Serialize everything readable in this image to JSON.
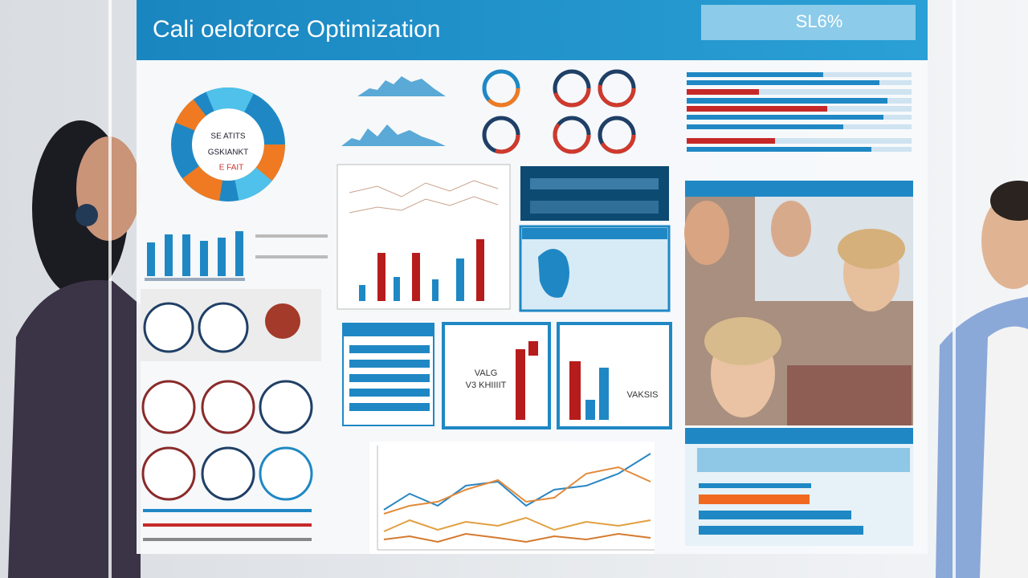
{
  "header": {
    "title": "Cali oeloforce Optimization",
    "badge": "SL6%"
  },
  "donut": {
    "lines": [
      "SE ATITS",
      "GSKIANKT",
      "E FAIT"
    ]
  },
  "panels": {
    "left_labels": [
      "VALG",
      "V3 KHIIIIT"
    ],
    "right_label": "VAKSIS"
  }
}
